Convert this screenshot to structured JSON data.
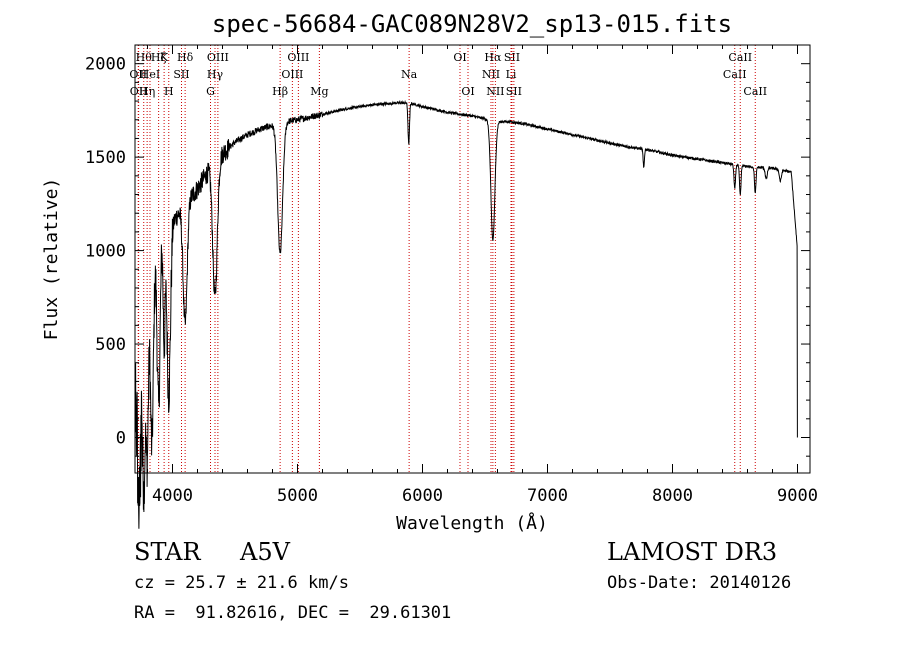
{
  "chart_data": {
    "type": "line",
    "title": "spec-56684-GAC089N28V2_sp13-015.fits",
    "xlabel": "Wavelength (Å)",
    "ylabel": "Flux (relative)",
    "xlim": [
      3700,
      9100
    ],
    "ylim": [
      -190,
      2100
    ],
    "xticks": [
      "4000",
      "5000",
      "6000",
      "7000",
      "8000",
      "9000"
    ],
    "yticks": [
      "0",
      "500",
      "1000",
      "1500",
      "2000"
    ],
    "grid": false,
    "line_color": "#000000",
    "marker_color": "#cc0000",
    "continuum": {
      "x": [
        3700,
        3800,
        3900,
        4000,
        4100,
        4200,
        4300,
        4400,
        4500,
        4600,
        4700,
        4800,
        4900,
        5000,
        5200,
        5400,
        5600,
        5800,
        5900,
        6000,
        6200,
        6400,
        6600,
        6700,
        6800,
        7000,
        7200,
        7400,
        7600,
        7800,
        8000,
        8200,
        8400,
        8600,
        8800,
        8950,
        9000
      ],
      "y": [
        550,
        800,
        1100,
        1150,
        1250,
        1330,
        1440,
        1520,
        1580,
        1620,
        1650,
        1670,
        1690,
        1700,
        1730,
        1760,
        1780,
        1790,
        1790,
        1770,
        1740,
        1720,
        1690,
        1690,
        1680,
        1650,
        1620,
        1590,
        1560,
        1540,
        1510,
        1490,
        1470,
        1450,
        1440,
        1420,
        1000
      ]
    },
    "absorption_lines": [
      {
        "x": 3733,
        "depth": 800,
        "width": 12
      },
      {
        "x": 3770,
        "depth": 1000,
        "width": 10
      },
      {
        "x": 3797,
        "depth": 900,
        "width": 10
      },
      {
        "x": 3835,
        "depth": 950,
        "width": 12
      },
      {
        "x": 3889,
        "depth": 900,
        "width": 12
      },
      {
        "x": 3933,
        "depth": 600,
        "width": 8
      },
      {
        "x": 3970,
        "depth": 900,
        "width": 14
      },
      {
        "x": 4101,
        "depth": 650,
        "width": 16
      },
      {
        "x": 4340,
        "depth": 720,
        "width": 18
      },
      {
        "x": 4861,
        "depth": 700,
        "width": 20
      },
      {
        "x": 5890,
        "depth": 220,
        "width": 6
      },
      {
        "x": 6563,
        "depth": 640,
        "width": 16
      },
      {
        "x": 7770,
        "depth": 100,
        "width": 5
      },
      {
        "x": 8498,
        "depth": 130,
        "width": 6
      },
      {
        "x": 8542,
        "depth": 160,
        "width": 6
      },
      {
        "x": 8662,
        "depth": 140,
        "width": 6
      },
      {
        "x": 8750,
        "depth": 60,
        "width": 8
      },
      {
        "x": 8863,
        "depth": 60,
        "width": 8
      }
    ],
    "line_markers": [
      {
        "x": 3726,
        "label": "OII",
        "row": 1
      },
      {
        "x": 3729,
        "label": "OII",
        "row": 2
      },
      {
        "x": 3770,
        "label": "Hθ",
        "row": 0
      },
      {
        "x": 3797,
        "label": "Hη",
        "row": 2
      },
      {
        "x": 3820,
        "label": "HeI",
        "row": 1
      },
      {
        "x": 3889,
        "label": "Hζ",
        "row": 0
      },
      {
        "x": 3933,
        "label": "K",
        "row": 0
      },
      {
        "x": 3970,
        "label": "H",
        "row": 2
      },
      {
        "x": 4072,
        "label": "SII",
        "row": 1
      },
      {
        "x": 4101,
        "label": "Hδ",
        "row": 0
      },
      {
        "x": 4304,
        "label": "G",
        "row": 2
      },
      {
        "x": 4340,
        "label": "Hγ",
        "row": 1
      },
      {
        "x": 4363,
        "label": "OIII",
        "row": 0
      },
      {
        "x": 4861,
        "label": "Hβ",
        "row": 2
      },
      {
        "x": 4959,
        "label": "OIII",
        "row": 1
      },
      {
        "x": 5007,
        "label": "OIII",
        "row": 0
      },
      {
        "x": 5175,
        "label": "Mg",
        "row": 2
      },
      {
        "x": 5893,
        "label": "Na",
        "row": 1
      },
      {
        "x": 6300,
        "label": "OI",
        "row": 0
      },
      {
        "x": 6364,
        "label": "OI",
        "row": 2
      },
      {
        "x": 6548,
        "label": "NII",
        "row": 1
      },
      {
        "x": 6563,
        "label": "Hα",
        "row": 0
      },
      {
        "x": 6583,
        "label": "NII",
        "row": 2
      },
      {
        "x": 6708,
        "label": "Li",
        "row": 1
      },
      {
        "x": 6716,
        "label": "SII",
        "row": 0
      },
      {
        "x": 6731,
        "label": "SII",
        "row": 2
      },
      {
        "x": 8498,
        "label": "CaII",
        "row": 1
      },
      {
        "x": 8542,
        "label": "CaII",
        "row": 0
      },
      {
        "x": 8662,
        "label": "CaII",
        "row": 2
      }
    ]
  },
  "info": {
    "object_class": "STAR",
    "subclass": "A5V",
    "survey": "LAMOST DR3",
    "cz": "cz = 25.7 ± 21.6 km/s",
    "obs_date": "Obs-Date: 20140126",
    "radec": "RA =  91.82616, DEC =  29.61301"
  }
}
